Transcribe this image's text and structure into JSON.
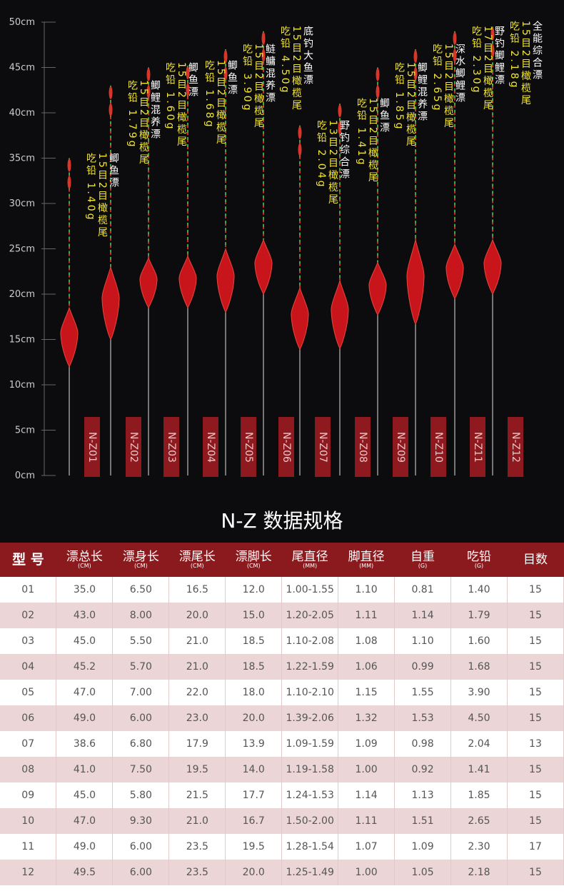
{
  "scale": {
    "ticks": [
      {
        "value": 0,
        "label": "0cm"
      },
      {
        "value": 5,
        "label": "5cm"
      },
      {
        "value": 10,
        "label": "10cm"
      },
      {
        "value": 15,
        "label": "15cm"
      },
      {
        "value": 20,
        "label": "20cm"
      },
      {
        "value": 25,
        "label": "25cm"
      },
      {
        "value": 30,
        "label": "30cm"
      },
      {
        "value": 35,
        "label": "35cm"
      },
      {
        "value": 40,
        "label": "40cm"
      },
      {
        "value": 45,
        "label": "45cm"
      },
      {
        "value": 50,
        "label": "50cm"
      }
    ]
  },
  "floats": [
    {
      "model": "N-Z01",
      "name": "鲫鱼漂",
      "spec": "15目2目橄榄尾",
      "lead": "吃铅 1.40g"
    },
    {
      "model": "N-Z02",
      "name": "鲫鲤混养漂",
      "spec": "15目2目橄榄尾",
      "lead": "吃铅 1.79g"
    },
    {
      "model": "N-Z03",
      "name": "鲫鱼漂",
      "spec": "15目2目橄榄尾",
      "lead": "吃铅 1.60g"
    },
    {
      "model": "N-Z04",
      "name": "鲫鱼漂",
      "spec": "15目2目橄榄尾",
      "lead": "吃铅 1.68g"
    },
    {
      "model": "N-Z05",
      "name": "鲢鳙混养漂",
      "spec": "15目2目橄榄尾",
      "lead": "吃铅 3.90g"
    },
    {
      "model": "N-Z06",
      "name": "底钓大鱼漂",
      "spec": "15目2目橄榄尾",
      "lead": "吃铅 4.50g"
    },
    {
      "model": "N-Z07",
      "name": "野钓综合漂",
      "spec": "13目2目橄榄尾",
      "lead": "吃铅 2.04g"
    },
    {
      "model": "N-Z08",
      "name": "鲫鱼漂",
      "spec": "15目2目橄榄尾",
      "lead": "吃铅 1.41g"
    },
    {
      "model": "N-Z09",
      "name": "鲫鲤混养漂",
      "spec": "15目2目橄榄尾",
      "lead": "吃铅 1.85g"
    },
    {
      "model": "N-Z10",
      "name": "深水鲫鲤漂",
      "spec": "15目2目橄榄尾",
      "lead": "吃铅 2.65g"
    },
    {
      "model": "N-Z11",
      "name": "野钓鲫鲤漂",
      "spec": "17目2目橄榄尾",
      "lead": "吃铅 2.30g"
    },
    {
      "model": "N-Z12",
      "name": "全能综合漂",
      "spec": "15目2目橄榄尾",
      "lead": "吃铅 2.18g"
    }
  ],
  "table": {
    "title": "N-Z 数据规格",
    "header": [
      {
        "label": "型 号"
      },
      {
        "label": "漂总长",
        "unit": "(CM)"
      },
      {
        "label": "漂身长",
        "unit": "(CM)"
      },
      {
        "label": "漂尾长",
        "unit": "(CM)"
      },
      {
        "label": "漂脚长",
        "unit": "(CM)"
      },
      {
        "label": "尾直径",
        "unit": "(MM)"
      },
      {
        "label": "脚直径",
        "unit": "(MM)"
      },
      {
        "label": "自重",
        "unit": "(G)"
      },
      {
        "label": "吃铅",
        "unit": "(G)"
      },
      {
        "label": "目数"
      }
    ],
    "rows": [
      [
        "01",
        "35.0",
        "6.50",
        "16.5",
        "12.0",
        "1.00-1.55",
        "1.10",
        "0.81",
        "1.40",
        "15"
      ],
      [
        "02",
        "43.0",
        "8.00",
        "20.0",
        "15.0",
        "1.20-2.05",
        "1.11",
        "1.14",
        "1.79",
        "15"
      ],
      [
        "03",
        "45.0",
        "5.50",
        "21.0",
        "18.5",
        "1.10-2.08",
        "1.08",
        "1.10",
        "1.60",
        "15"
      ],
      [
        "04",
        "45.2",
        "5.70",
        "21.0",
        "18.5",
        "1.22-1.59",
        "1.06",
        "0.99",
        "1.68",
        "15"
      ],
      [
        "05",
        "47.0",
        "7.00",
        "22.0",
        "18.0",
        "1.10-2.10",
        "1.15",
        "1.55",
        "3.90",
        "15"
      ],
      [
        "06",
        "49.0",
        "6.00",
        "23.0",
        "20.0",
        "1.39-2.06",
        "1.32",
        "1.53",
        "4.50",
        "15"
      ],
      [
        "07",
        "38.6",
        "6.80",
        "17.9",
        "13.9",
        "1.09-1.59",
        "1.09",
        "0.98",
        "2.04",
        "13"
      ],
      [
        "08",
        "41.0",
        "7.50",
        "19.5",
        "14.0",
        "1.19-1.58",
        "1.00",
        "0.92",
        "1.41",
        "15"
      ],
      [
        "09",
        "45.0",
        "5.80",
        "21.5",
        "17.7",
        "1.24-1.53",
        "1.14",
        "1.13",
        "1.85",
        "15"
      ],
      [
        "10",
        "47.0",
        "9.30",
        "21.0",
        "16.7",
        "1.50-2.00",
        "1.11",
        "1.51",
        "2.65",
        "15"
      ],
      [
        "11",
        "49.0",
        "6.00",
        "23.5",
        "19.5",
        "1.28-1.54",
        "1.07",
        "1.09",
        "2.30",
        "17"
      ],
      [
        "12",
        "49.5",
        "6.00",
        "23.5",
        "20.0",
        "1.25-1.49",
        "1.00",
        "1.05",
        "2.18",
        "15"
      ]
    ]
  }
}
